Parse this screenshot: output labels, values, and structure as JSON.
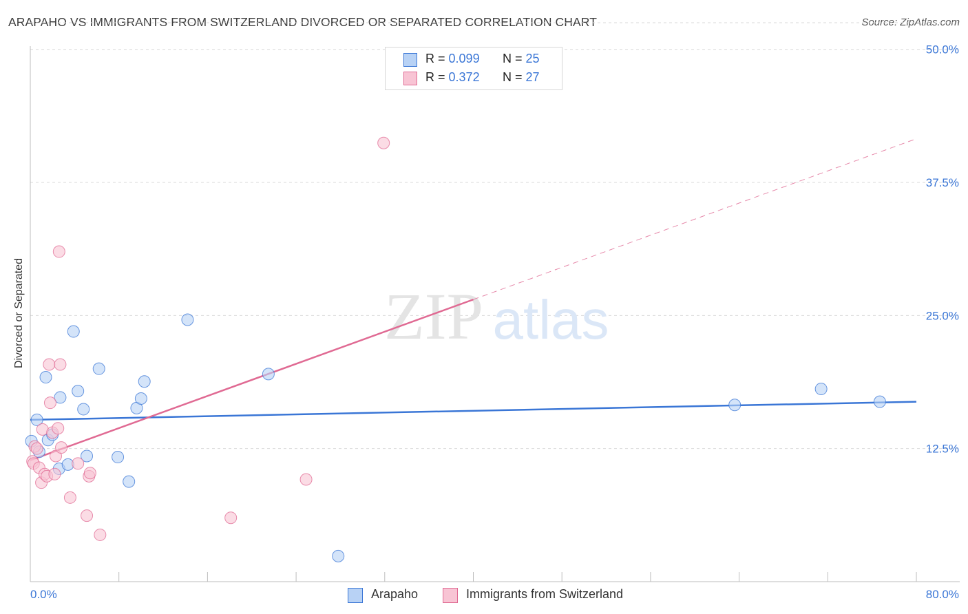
{
  "title": "ARAPAHO VS IMMIGRANTS FROM SWITZERLAND DIVORCED OR SEPARATED CORRELATION CHART",
  "source": "Source: ZipAtlas.com",
  "watermark": {
    "zip": "ZIP",
    "atlas": "atlas"
  },
  "legend": {
    "rows": [
      {
        "r_label": "R =",
        "r_value": "0.099",
        "n_label": "N =",
        "n_value": "25"
      },
      {
        "r_label": "R =",
        "r_value": "0.372",
        "n_label": "N =",
        "n_value": "27"
      }
    ]
  },
  "colors": {
    "blue": "#3a76d6",
    "blue_fill": "#b8d2f5",
    "pink": "#e06a93",
    "pink_fill": "#f8c4d4",
    "grid": "#d9d9d9",
    "tick_label": "#3a76d6"
  },
  "chart_data": {
    "type": "scatter",
    "title": "ARAPAHO VS IMMIGRANTS FROM SWITZERLAND DIVORCED OR SEPARATED CORRELATION CHART",
    "xlabel": "",
    "ylabel": "Divorced or Separated",
    "xlim": [
      0,
      80
    ],
    "ylim": [
      0,
      52.5
    ],
    "x_tick_labels": [
      "0.0%",
      "80.0%"
    ],
    "y_ticks": [
      12.5,
      25.0,
      37.5,
      50.0
    ],
    "y_tick_labels": [
      "12.5%",
      "25.0%",
      "37.5%",
      "50.0%"
    ],
    "grid": "horizontal dashed",
    "legend_position": "bottom",
    "series": [
      {
        "name": "Arapaho",
        "color": "#3a76d6",
        "points": [
          [
            0.1,
            13.2
          ],
          [
            0.6,
            15.2
          ],
          [
            0.8,
            12.2
          ],
          [
            1.4,
            19.2
          ],
          [
            1.6,
            13.3
          ],
          [
            2.0,
            13.8
          ],
          [
            2.6,
            10.6
          ],
          [
            2.7,
            17.3
          ],
          [
            3.4,
            11.0
          ],
          [
            3.9,
            23.5
          ],
          [
            4.3,
            17.9
          ],
          [
            4.8,
            16.2
          ],
          [
            5.1,
            11.8
          ],
          [
            6.2,
            20.0
          ],
          [
            7.9,
            11.7
          ],
          [
            8.9,
            9.4
          ],
          [
            9.6,
            16.3
          ],
          [
            10.0,
            17.2
          ],
          [
            10.3,
            18.8
          ],
          [
            14.2,
            24.6
          ],
          [
            21.5,
            19.5
          ],
          [
            27.8,
            2.4
          ],
          [
            63.6,
            16.6
          ],
          [
            71.4,
            18.1
          ],
          [
            76.7,
            16.9
          ]
        ],
        "trend": {
          "x": [
            0,
            80
          ],
          "y": [
            15.2,
            16.9
          ],
          "style": "solid"
        }
      },
      {
        "name": "Immigrants from Switzerland",
        "color": "#e06a93",
        "points": [
          [
            0.2,
            11.3
          ],
          [
            0.3,
            11.1
          ],
          [
            0.4,
            12.7
          ],
          [
            0.6,
            12.5
          ],
          [
            0.8,
            10.7
          ],
          [
            1.0,
            9.3
          ],
          [
            1.1,
            14.3
          ],
          [
            1.3,
            10.1
          ],
          [
            1.5,
            9.9
          ],
          [
            1.7,
            20.4
          ],
          [
            1.8,
            16.8
          ],
          [
            2.0,
            14.0
          ],
          [
            2.2,
            10.1
          ],
          [
            2.3,
            11.8
          ],
          [
            2.5,
            14.4
          ],
          [
            2.6,
            31.0
          ],
          [
            2.7,
            20.4
          ],
          [
            2.8,
            12.6
          ],
          [
            3.6,
            7.9
          ],
          [
            4.3,
            11.1
          ],
          [
            5.1,
            6.2
          ],
          [
            5.3,
            9.9
          ],
          [
            5.4,
            10.2
          ],
          [
            6.3,
            4.4
          ],
          [
            18.1,
            6.0
          ],
          [
            24.9,
            9.6
          ],
          [
            31.9,
            41.2
          ]
        ],
        "trend": {
          "x": [
            0,
            40
          ],
          "y": [
            11.4,
            26.5
          ],
          "style": "solid"
        },
        "trend_extension": {
          "x": [
            40,
            80
          ],
          "y": [
            26.5,
            41.6
          ],
          "style": "dashed"
        }
      }
    ]
  }
}
